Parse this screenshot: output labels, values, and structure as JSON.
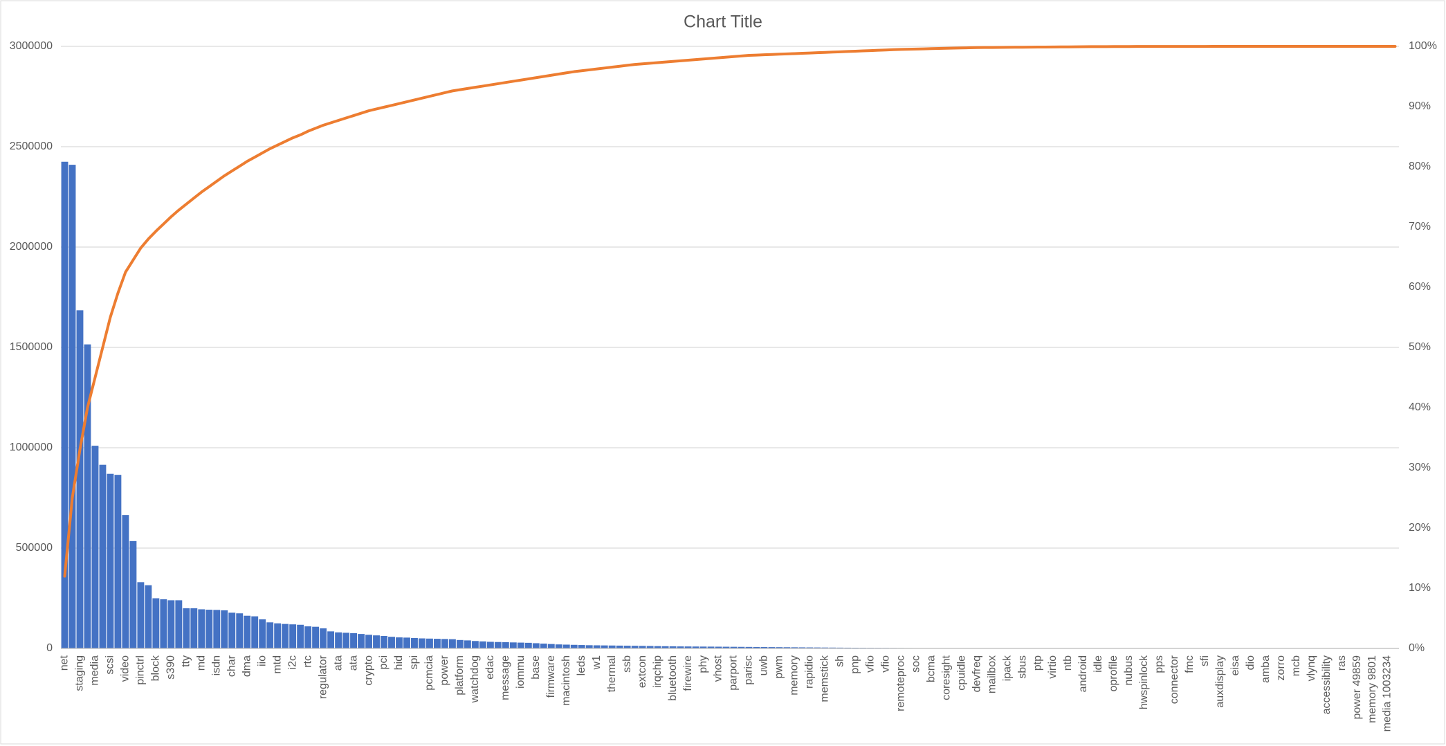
{
  "chart_data": {
    "type": "pareto",
    "title": "Chart Title",
    "categories": [
      "net",
      null,
      "staging",
      null,
      "media",
      null,
      "scsi",
      null,
      "video",
      null,
      "pinctrl",
      null,
      "block",
      null,
      "s390",
      null,
      "tty",
      null,
      "md",
      null,
      "isdn",
      null,
      "char",
      null,
      "dma",
      null,
      "iio",
      null,
      "mtd",
      null,
      "i2c",
      null,
      "rtc",
      null,
      "regulator",
      null,
      "ata",
      null,
      "ata",
      null,
      "crypto",
      null,
      "pci",
      null,
      "hid",
      null,
      "spi",
      null,
      "pcmcia",
      null,
      "power",
      null,
      "platform",
      null,
      "watchdog",
      null,
      "edac",
      null,
      "message",
      null,
      "iommu",
      null,
      "base",
      null,
      "firmware",
      null,
      "macintosh",
      null,
      "leds",
      null,
      "w1",
      null,
      "thermal",
      null,
      "ssb",
      null,
      "extcon",
      null,
      "irqchip",
      null,
      "bluetooth",
      null,
      "firewire",
      null,
      "phy",
      null,
      "vhost",
      null,
      "parport",
      null,
      "parisc",
      null,
      "uwb",
      null,
      "pwm",
      null,
      "memory",
      null,
      "rapidio",
      null,
      "memstick",
      null,
      "sh",
      null,
      "pnp",
      null,
      "vfio",
      null,
      "vfio",
      null,
      "remoteproc",
      null,
      "soc",
      null,
      "bcma",
      null,
      "coresight",
      null,
      "cpuidle",
      null,
      "devfreq",
      null,
      "mailbox",
      null,
      "ipack",
      null,
      "sbus",
      null,
      "ptp",
      null,
      "virtio",
      null,
      "ntb",
      null,
      "android",
      null,
      "idle",
      null,
      "oprofile",
      null,
      "nubus",
      null,
      "hwspinlock",
      null,
      "pps",
      null,
      "connector",
      null,
      "fmc",
      null,
      "sfi",
      null,
      "auxdisplay",
      null,
      "eisa",
      null,
      "dio",
      null,
      "amba",
      null,
      "zorro",
      null,
      "mcb",
      null,
      "vlynq",
      null,
      "accessibility",
      null,
      "ras",
      null,
      "power 49859",
      null,
      "memory 9801",
      null,
      "media 1003234",
      null
    ],
    "series": [
      {
        "color": "#4472c4",
        "type": "bar",
        "values": [
          2425000,
          2410000,
          1685000,
          1515000,
          1010000,
          915000,
          870000,
          865000,
          665000,
          535000,
          330000,
          315000,
          250000,
          245000,
          240000,
          240000,
          200000,
          200000,
          195000,
          193000,
          192000,
          190000,
          178000,
          175000,
          163000,
          160000,
          145000,
          130000,
          125000,
          122000,
          120000,
          118000,
          110000,
          108000,
          100000,
          85000,
          80000,
          78000,
          76000,
          72000,
          68000,
          65000,
          62000,
          58000,
          55000,
          54000,
          52000,
          50000,
          49000,
          48000,
          47000,
          46000,
          42000,
          40000,
          37000,
          35000,
          33000,
          32000,
          31000,
          30000,
          29000,
          28000,
          26000,
          24000,
          22000,
          20000,
          19000,
          18000,
          17000,
          16000,
          15500,
          15000,
          14500,
          14000,
          13500,
          13000,
          12500,
          12000,
          11500,
          11000,
          10500,
          10000,
          9800,
          9500,
          9200,
          9000,
          8700,
          8400,
          8100,
          7800,
          7500,
          7200,
          6900,
          6600,
          6300,
          6000,
          5700,
          5400,
          5100,
          4800,
          4500,
          4200,
          3900,
          3600,
          3300,
          3000,
          2800,
          2600,
          2400,
          2200,
          2000,
          1800,
          1600,
          1400,
          1200,
          1000,
          900,
          800,
          700,
          650,
          600,
          550,
          500,
          460,
          420,
          380,
          350,
          320,
          290,
          260,
          240,
          220,
          200,
          180,
          160,
          150,
          140,
          130,
          120,
          110,
          100,
          95,
          90,
          85,
          80,
          75,
          70,
          65,
          60,
          55,
          50,
          46,
          42,
          38,
          35,
          32,
          29,
          26,
          24,
          22,
          20,
          18,
          16,
          15,
          14,
          13,
          12,
          11,
          10,
          9,
          8,
          7,
          6,
          5,
          4,
          3
        ]
      },
      {
        "color": "#ed7d31",
        "type": "line",
        "axis": "y2",
        "values": [
          12,
          25,
          33,
          40,
          45,
          50,
          55,
          59,
          62.5,
          64.5,
          66.5,
          68,
          69.3,
          70.5,
          71.7,
          72.8,
          73.8,
          74.8,
          75.8,
          76.7,
          77.6,
          78.5,
          79.3,
          80.1,
          80.9,
          81.6,
          82.3,
          83,
          83.6,
          84.2,
          84.8,
          85.3,
          85.9,
          86.4,
          86.9,
          87.3,
          87.7,
          88.1,
          88.5,
          88.9,
          89.3,
          89.6,
          89.9,
          90.2,
          90.5,
          90.8,
          91.1,
          91.4,
          91.7,
          92,
          92.3,
          92.6,
          92.8,
          93,
          93.2,
          93.4,
          93.6,
          93.8,
          94,
          94.2,
          94.4,
          94.6,
          94.8,
          95,
          95.2,
          95.4,
          95.6,
          95.8,
          95.95,
          96.1,
          96.25,
          96.4,
          96.55,
          96.7,
          96.85,
          97,
          97.1,
          97.2,
          97.3,
          97.4,
          97.5,
          97.6,
          97.7,
          97.8,
          97.9,
          98,
          98.1,
          98.2,
          98.3,
          98.4,
          98.5,
          98.55,
          98.6,
          98.65,
          98.7,
          98.75,
          98.8,
          98.85,
          98.9,
          98.95,
          99,
          99.05,
          99.1,
          99.15,
          99.2,
          99.25,
          99.3,
          99.35,
          99.4,
          99.45,
          99.5,
          99.53,
          99.56,
          99.59,
          99.62,
          99.65,
          99.68,
          99.71,
          99.74,
          99.77,
          99.8,
          99.81,
          99.82,
          99.83,
          99.84,
          99.85,
          99.86,
          99.87,
          99.88,
          99.89,
          99.9,
          99.91,
          99.92,
          99.93,
          99.94,
          99.95,
          99.96,
          99.96,
          99.97,
          99.97,
          99.97,
          99.98,
          99.98,
          99.98,
          99.98,
          99.99,
          99.99,
          99.99,
          99.99,
          99.99,
          99.99,
          100,
          100,
          100,
          100,
          100,
          100,
          100,
          100,
          100,
          100,
          100,
          100,
          100,
          100,
          100,
          100,
          100,
          100,
          100,
          100,
          100,
          100,
          100,
          100,
          100
        ]
      }
    ],
    "ylim": [
      0,
      3000000
    ],
    "yticks": [
      0,
      500000,
      1000000,
      1500000,
      2000000,
      2500000,
      3000000
    ],
    "y2lim": [
      0,
      100
    ],
    "y2ticks": [
      {
        "value": 0,
        "label": "0%"
      },
      {
        "value": 10,
        "label": "10%"
      },
      {
        "value": 20,
        "label": "20%"
      },
      {
        "value": 30,
        "label": "30%"
      },
      {
        "value": 40,
        "label": "40%"
      },
      {
        "value": 50,
        "label": "50%"
      },
      {
        "value": 60,
        "label": "60%"
      },
      {
        "value": 70,
        "label": "70%"
      },
      {
        "value": 80,
        "label": "80%"
      },
      {
        "value": 90,
        "label": "90%"
      },
      {
        "value": 100,
        "label": "100%"
      }
    ],
    "grid": true
  }
}
